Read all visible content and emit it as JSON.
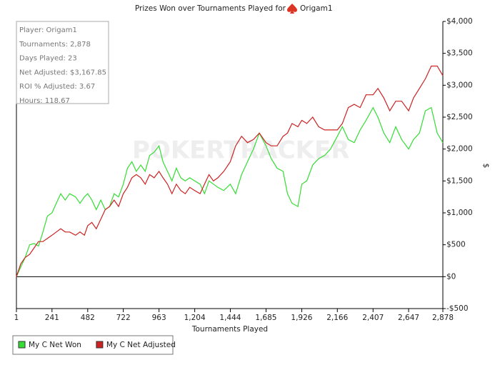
{
  "chart_data": {
    "type": "line",
    "title": "Prizes Won over Tournaments Played for",
    "title_player": "Origam1",
    "watermark": "POKERTRACKER",
    "info": [
      "Player: Origam1",
      "Tournaments: 2,878",
      "Days Played: 23",
      "Net Adjusted: $3,167.85",
      "ROI % Adjusted: 3.67",
      "Hours: 118.67"
    ],
    "x_label": "Tournaments Played",
    "y_label": "$",
    "xlim": [
      1,
      2878
    ],
    "xticks": [
      1,
      241,
      482,
      722,
      963,
      {
        "value": 1204,
        "label": "1,204"
      },
      {
        "value": 1444,
        "label": "1,444"
      },
      {
        "value": 1685,
        "label": "1,685"
      },
      {
        "value": 1926,
        "label": "1,926"
      },
      {
        "value": 2166,
        "label": "2,166"
      },
      {
        "value": 2407,
        "label": "2,407"
      },
      {
        "value": 2647,
        "label": "2,647"
      },
      {
        "value": 2878,
        "label": "2,878"
      }
    ],
    "ylim": [
      -500,
      4000
    ],
    "yticks": [
      {
        "value": -500,
        "label": "-$500"
      },
      {
        "value": 0,
        "label": "$0"
      },
      {
        "value": 500,
        "label": "$500"
      },
      {
        "value": 1000,
        "label": "$1,000"
      },
      {
        "value": 1500,
        "label": "$1,500"
      },
      {
        "value": 2000,
        "label": "$2,000"
      },
      {
        "value": 2500,
        "label": "$2,500"
      },
      {
        "value": 3000,
        "label": "$3,000"
      },
      {
        "value": 3500,
        "label": "$3,500"
      },
      {
        "value": 4000,
        "label": "$4,000"
      }
    ],
    "x": [
      1,
      30,
      60,
      90,
      120,
      150,
      180,
      210,
      241,
      270,
      300,
      330,
      360,
      400,
      430,
      460,
      482,
      510,
      540,
      570,
      600,
      630,
      660,
      690,
      722,
      750,
      780,
      810,
      840,
      870,
      900,
      930,
      963,
      990,
      1020,
      1050,
      1080,
      1110,
      1140,
      1170,
      1204,
      1240,
      1270,
      1300,
      1330,
      1360,
      1400,
      1444,
      1480,
      1520,
      1560,
      1600,
      1640,
      1685,
      1720,
      1760,
      1800,
      1830,
      1860,
      1900,
      1926,
      1960,
      2000,
      2040,
      2080,
      2120,
      2166,
      2200,
      2240,
      2280,
      2320,
      2360,
      2407,
      2440,
      2480,
      2520,
      2560,
      2600,
      2647,
      2680,
      2720,
      2760,
      2800,
      2840,
      2878
    ],
    "series": [
      {
        "name": "My C Net Won",
        "color": "#33dd33",
        "values": [
          0,
          150,
          300,
          500,
          520,
          480,
          700,
          950,
          1000,
          1150,
          1300,
          1200,
          1300,
          1250,
          1150,
          1250,
          1300,
          1200,
          1050,
          1200,
          1050,
          1100,
          1300,
          1250,
          1450,
          1700,
          1800,
          1650,
          1750,
          1650,
          1900,
          1950,
          2050,
          1800,
          1650,
          1500,
          1700,
          1550,
          1500,
          1550,
          1500,
          1450,
          1300,
          1500,
          1450,
          1400,
          1350,
          1450,
          1300,
          1600,
          1800,
          2000,
          2250,
          2050,
          1850,
          1700,
          1650,
          1300,
          1150,
          1100,
          1450,
          1500,
          1750,
          1850,
          1900,
          2000,
          2200,
          2350,
          2150,
          2100,
          2300,
          2450,
          2650,
          2500,
          2250,
          2100,
          2350,
          2150,
          2000,
          2150,
          2250,
          2600,
          2650,
          2250,
          2100
        ]
      },
      {
        "name": "My C Net Adjusted",
        "color": "#cc2222",
        "values": [
          0,
          200,
          300,
          350,
          450,
          550,
          550,
          600,
          650,
          700,
          750,
          700,
          700,
          650,
          700,
          650,
          800,
          850,
          750,
          900,
          1050,
          1100,
          1200,
          1100,
          1300,
          1400,
          1550,
          1600,
          1550,
          1450,
          1600,
          1550,
          1650,
          1550,
          1450,
          1300,
          1450,
          1350,
          1300,
          1400,
          1350,
          1300,
          1450,
          1600,
          1500,
          1550,
          1650,
          1800,
          2050,
          2200,
          2100,
          2150,
          2250,
          2100,
          2050,
          2050,
          2200,
          2250,
          2400,
          2350,
          2450,
          2400,
          2500,
          2350,
          2300,
          2300,
          2300,
          2400,
          2650,
          2700,
          2650,
          2850,
          2850,
          2950,
          2800,
          2600,
          2750,
          2750,
          2600,
          2800,
          2950,
          3100,
          3300,
          3300,
          3150
        ]
      }
    ]
  }
}
